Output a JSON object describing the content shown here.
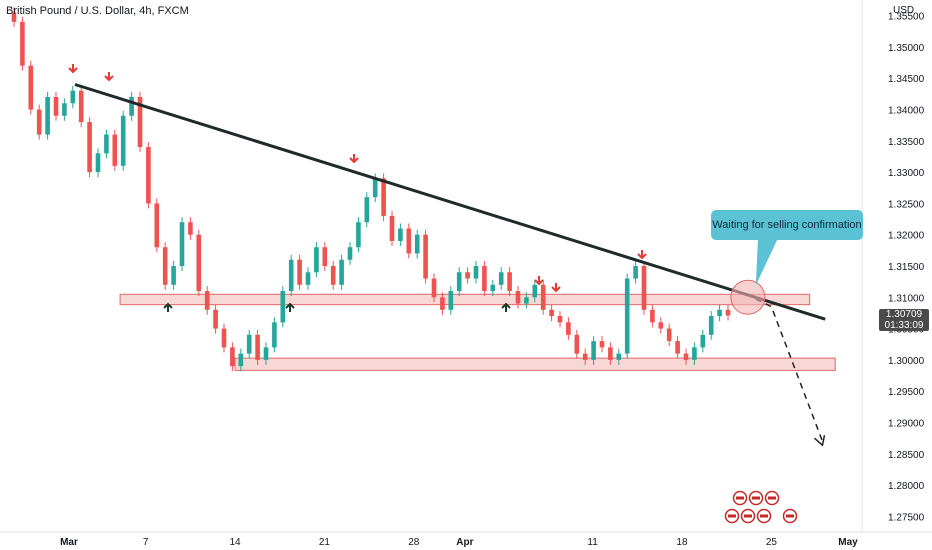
{
  "header": {
    "title": "British Pound / U.S. Dollar, 4h, FXCM",
    "currency": "USD"
  },
  "price_label": {
    "price": "1.30709",
    "countdown": "01:33:09"
  },
  "callout": {
    "text": "Waiting for selling confirmation"
  },
  "colors": {
    "up": "#26a69a",
    "down": "#ef5350",
    "trendline": "#1f2a2a",
    "zone": "#f5c6c6",
    "zone_border": "#e06666",
    "callout": "#5bc2d6"
  },
  "chart_data": {
    "type": "candlestick",
    "title": "British Pound / U.S. Dollar, 4h, FXCM",
    "ylabel": "USD",
    "ylim": [
      1.2725,
      1.3575
    ],
    "y_ticks": [
      "1.35500",
      "1.35000",
      "1.34500",
      "1.34000",
      "1.33500",
      "1.33000",
      "1.32500",
      "1.32000",
      "1.31500",
      "1.31000",
      "1.30500",
      "1.30000",
      "1.29500",
      "1.29000",
      "1.28500",
      "1.28000",
      "1.27500"
    ],
    "x_ticks": [
      {
        "label": "Mar",
        "bold": true
      },
      {
        "label": "7",
        "bold": false
      },
      {
        "label": "14",
        "bold": false
      },
      {
        "label": "21",
        "bold": false
      },
      {
        "label": "28",
        "bold": false
      },
      {
        "label": "Apr",
        "bold": true
      },
      {
        "label": "11",
        "bold": false
      },
      {
        "label": "18",
        "bold": false
      },
      {
        "label": "25",
        "bold": false
      },
      {
        "label": "May",
        "bold": true
      }
    ],
    "trendline": {
      "start": {
        "date": "Mar 1",
        "price": 1.344
      },
      "end": {
        "date": "Apr 30",
        "price": 1.3065
      }
    },
    "zones": [
      {
        "from_date": "Mar 5",
        "to_date": "Apr 28",
        "low": 1.3093,
        "high": 1.31
      },
      {
        "from_date": "Mar 14",
        "to_date": "Apr 30",
        "low": 1.2988,
        "high": 1.2998
      }
    ],
    "projection": [
      {
        "date": "Apr 23",
        "price": 1.3105
      },
      {
        "date": "Apr 25",
        "price": 1.3085
      },
      {
        "date": "Apr 29",
        "price": 1.287
      }
    ],
    "current_price": 1.30709,
    "series": [
      {
        "close": [
          1.354,
          1.347,
          1.34,
          1.336,
          1.342,
          1.339,
          1.341,
          1.343,
          1.338,
          1.33,
          1.333,
          1.336,
          1.331,
          1.339,
          1.342,
          1.334,
          1.325,
          1.318,
          1.312,
          1.315,
          1.322,
          1.32,
          1.311,
          1.308,
          1.305,
          1.302,
          1.299,
          1.301,
          1.304,
          1.3,
          1.302,
          1.306,
          1.311,
          1.316,
          1.312,
          1.314,
          1.318,
          1.315,
          1.312,
          1.316,
          1.318,
          1.322,
          1.326,
          1.329,
          1.323,
          1.319,
          1.321,
          1.317,
          1.32,
          1.313,
          1.31,
          1.308,
          1.311,
          1.314,
          1.313,
          1.315,
          1.311,
          1.312,
          1.314,
          1.311,
          1.309,
          1.31,
          1.312,
          1.308,
          1.307,
          1.306,
          1.304,
          1.301,
          1.3,
          1.303,
          1.302,
          1.3,
          1.301,
          1.313,
          1.315,
          1.308,
          1.306,
          1.305,
          1.303,
          1.301,
          1.3,
          1.302,
          1.304,
          1.307,
          1.308,
          1.3071
        ]
      }
    ]
  }
}
